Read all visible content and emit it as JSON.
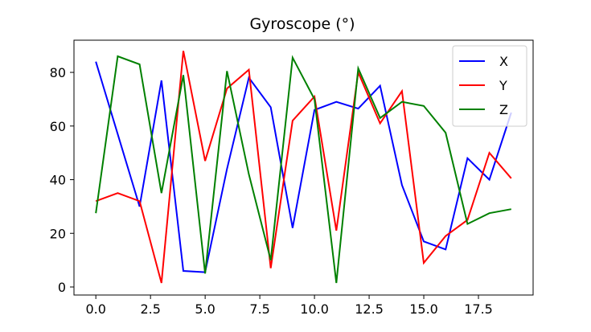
{
  "chart_data": {
    "type": "line",
    "title": "Gyroscope (°)",
    "xlabel": "",
    "ylabel": "",
    "xlim": [
      -1.0,
      20.0
    ],
    "ylim": [
      -3.0,
      92.0
    ],
    "xticks": [
      0.0,
      2.5,
      5.0,
      7.5,
      10.0,
      12.5,
      15.0,
      17.5
    ],
    "xtick_labels": [
      "0.0",
      "2.5",
      "5.0",
      "7.5",
      "10.0",
      "12.5",
      "15.0",
      "17.5"
    ],
    "yticks": [
      0,
      20,
      40,
      60,
      80
    ],
    "ytick_labels": [
      "0",
      "20",
      "40",
      "60",
      "80"
    ],
    "grid": false,
    "legend_position": "top-right",
    "x": [
      0,
      1,
      2,
      3,
      4,
      5,
      6,
      7,
      8,
      9,
      10,
      11,
      12,
      13,
      14,
      15,
      16,
      17,
      18,
      19
    ],
    "series": [
      {
        "name": "X",
        "color": "#0000ff",
        "values": [
          84,
          57,
          30,
          77,
          6,
          5.5,
          44,
          78,
          67,
          22,
          66,
          69,
          66.5,
          75,
          38,
          17,
          14,
          48,
          40,
          65
        ]
      },
      {
        "name": "Y",
        "color": "#ff0000",
        "values": [
          32,
          35,
          32,
          1.5,
          88,
          47,
          74,
          81,
          7,
          62,
          71,
          21,
          80,
          61,
          73,
          9,
          19,
          25,
          50,
          40.5
        ]
      },
      {
        "name": "Z",
        "color": "#008000",
        "values": [
          27.5,
          86,
          83,
          35,
          79,
          5,
          80.5,
          42,
          10,
          85.5,
          70,
          1.5,
          81.5,
          63,
          69,
          67.5,
          57.5,
          23.5,
          27.5,
          29
        ]
      }
    ]
  }
}
